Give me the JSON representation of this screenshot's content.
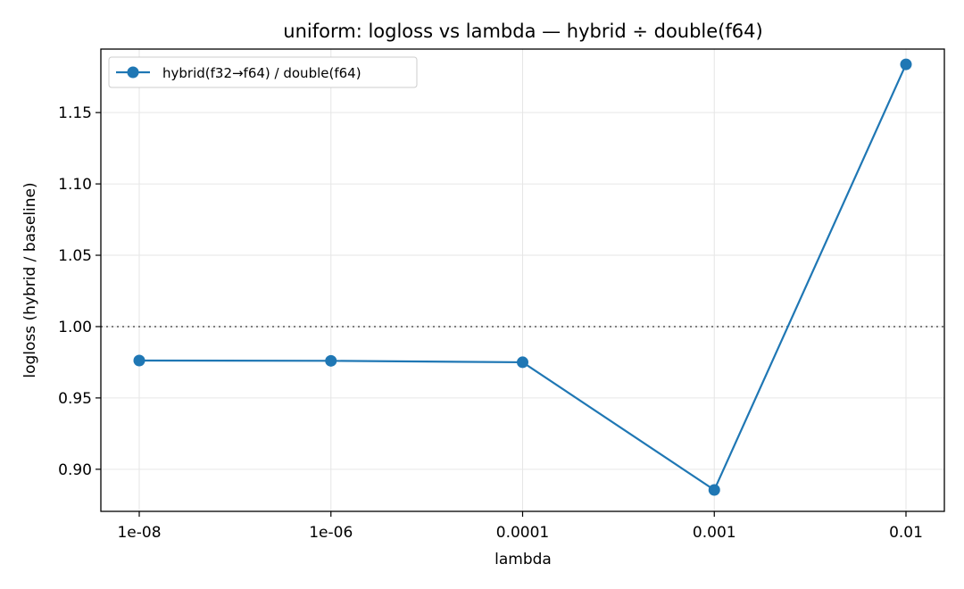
{
  "chart_data": {
    "type": "line",
    "title": "uniform: logloss vs lambda — hybrid ÷ double(f64)",
    "xlabel": "lambda",
    "ylabel": "logloss (hybrid / baseline)",
    "categories": [
      "1e-08",
      "1e-06",
      "0.0001",
      "0.001",
      "0.01"
    ],
    "series": [
      {
        "name": "hybrid(f32→f64) / double(f64)",
        "values": [
          0.9762,
          0.976,
          0.975,
          0.8855,
          1.1838
        ],
        "color": "#1f77b4"
      }
    ],
    "yticks": [
      "0.90",
      "0.95",
      "1.00",
      "1.05",
      "1.10",
      "1.15"
    ],
    "ylim": [
      0.8705,
      1.1945
    ],
    "reference_line": {
      "y": 1.0,
      "style": "dotted",
      "color": "#808080"
    },
    "grid": true,
    "legend": "top-left"
  }
}
